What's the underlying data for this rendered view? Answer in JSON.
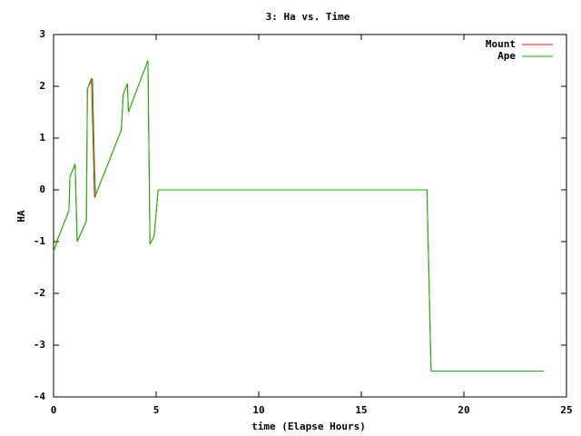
{
  "chart_data": {
    "type": "line",
    "title": "3: Ha vs. Time",
    "xlabel": "time (Elapse Hours)",
    "ylabel": "HA",
    "series": [
      {
        "name": "Mount",
        "color": "#ff0000",
        "x": [
          0,
          0.2,
          0.75,
          0.8,
          1.05,
          1.15,
          1.6,
          1.65,
          1.85,
          2.0,
          2.1,
          3.3,
          3.4,
          3.6,
          3.65,
          4.6,
          4.7,
          4.9,
          5.1,
          18.2,
          18.4,
          23.9
        ],
        "values": [
          -1.2,
          -0.95,
          -0.4,
          0.25,
          0.5,
          -1.0,
          -0.6,
          1.95,
          2.15,
          -0.15,
          -0.05,
          1.15,
          1.85,
          2.05,
          1.5,
          2.5,
          -1.05,
          -0.9,
          0,
          0,
          -3.5,
          -3.5
        ]
      },
      {
        "name": "Ape",
        "color": "#00c000",
        "x": [
          0,
          0.2,
          0.75,
          0.8,
          1.05,
          1.15,
          1.6,
          1.65,
          1.9,
          2.0,
          2.05,
          2.1,
          3.3,
          3.4,
          3.6,
          3.65,
          4.6,
          4.7,
          4.9,
          5.1,
          18.2,
          18.4,
          23.9
        ],
        "values": [
          -1.2,
          -0.95,
          -0.4,
          0.25,
          0.5,
          -1.0,
          -0.6,
          1.95,
          2.15,
          0.4,
          -0.1,
          -0.05,
          1.15,
          1.85,
          2.05,
          1.5,
          2.5,
          -1.05,
          -0.9,
          0,
          0,
          -3.5,
          -3.5
        ]
      }
    ],
    "xlim": [
      0,
      25
    ],
    "xticks": [
      0,
      5,
      10,
      15,
      20,
      25
    ],
    "ylim": [
      -4,
      3
    ],
    "yticks": [
      -4,
      -3,
      -2,
      -1,
      0,
      1,
      2,
      3
    ],
    "legend": "top-right"
  }
}
